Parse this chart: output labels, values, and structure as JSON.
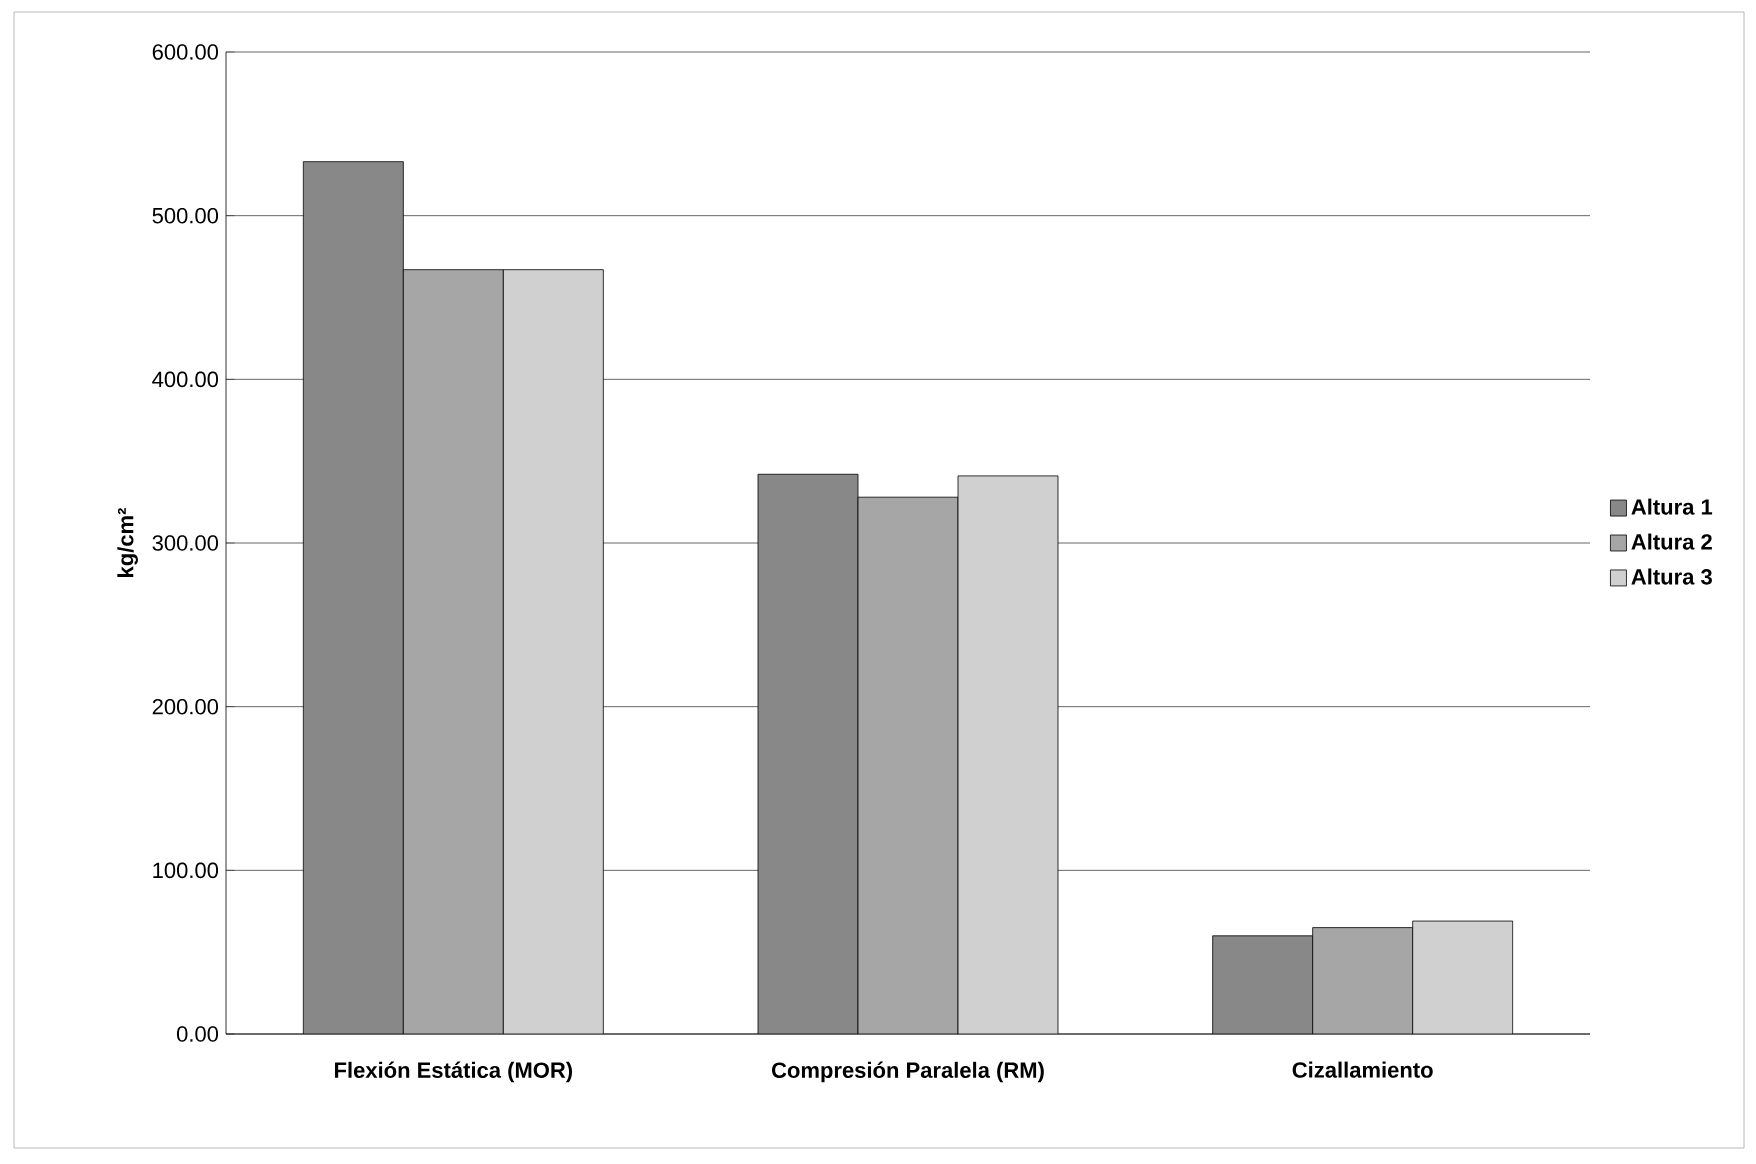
{
  "chart_data": {
    "type": "bar",
    "ylabel": "kg/cm²",
    "categories": [
      "Flexión Estática (MOR)",
      "Compresión Paralela (RM)",
      "Cizallamiento"
    ],
    "series": [
      {
        "name": "Altura 1",
        "color": "#888888",
        "values": [
          533,
          342,
          60
        ]
      },
      {
        "name": "Altura 2",
        "color": "#a6a6a6",
        "values": [
          467,
          328,
          65
        ]
      },
      {
        "name": "Altura 3",
        "color": "#d0d0d0",
        "values": [
          467,
          341,
          69
        ]
      }
    ],
    "ylim": [
      0,
      600
    ],
    "yticks": [
      {
        "value": 0,
        "label": "0.00"
      },
      {
        "value": 100,
        "label": "100.00"
      },
      {
        "value": 200,
        "label": "200.00"
      },
      {
        "value": 300,
        "label": "300.00"
      },
      {
        "value": 400,
        "label": "400.00"
      },
      {
        "value": 500,
        "label": "500.00"
      },
      {
        "value": 600,
        "label": "600.00"
      }
    ],
    "grid": "y",
    "legend": "right"
  }
}
